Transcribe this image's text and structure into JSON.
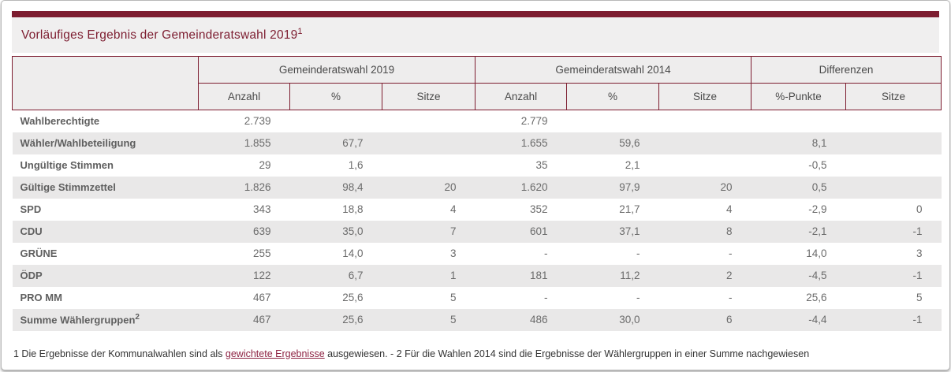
{
  "colors": {
    "accent": "#7d1d30",
    "link": "#8d2242",
    "title_strip_bg": "#f0efef",
    "header_cell_bg": "#eeeded",
    "row_stripe_bg": "#e9e8e8"
  },
  "title": {
    "text": "Vorläufiges Ergebnis der Gemeinderatswahl 2019",
    "sup": "1"
  },
  "table": {
    "groups": [
      {
        "label": "",
        "colspan": 1,
        "rowspan": 2
      },
      {
        "label": "Gemeinderatswahl 2019",
        "colspan": 3
      },
      {
        "label": "Gemeinderatswahl 2014",
        "colspan": 3
      },
      {
        "label": "Differenzen",
        "colspan": 2
      }
    ],
    "subheaders": [
      "Anzahl",
      "%",
      "Sitze",
      "Anzahl",
      "%",
      "Sitze",
      "%-Punkte",
      "Sitze"
    ],
    "rows": [
      {
        "label": "Wahlberechtigte",
        "values": [
          "2.739",
          "",
          "",
          "2.779",
          "",
          "",
          "",
          ""
        ]
      },
      {
        "label": "Wähler/Wahlbeteiligung",
        "values": [
          "1.855",
          "67,7",
          "",
          "1.655",
          "59,6",
          "",
          "8,1",
          ""
        ]
      },
      {
        "label": "Ungültige Stimmen",
        "values": [
          "29",
          "1,6",
          "",
          "35",
          "2,1",
          "",
          "-0,5",
          ""
        ]
      },
      {
        "label": "Gültige Stimmzettel",
        "values": [
          "1.826",
          "98,4",
          "20",
          "1.620",
          "97,9",
          "20",
          "0,5",
          ""
        ]
      },
      {
        "label": "SPD",
        "values": [
          "343",
          "18,8",
          "4",
          "352",
          "21,7",
          "4",
          "-2,9",
          "0"
        ]
      },
      {
        "label": "CDU",
        "values": [
          "639",
          "35,0",
          "7",
          "601",
          "37,1",
          "8",
          "-2,1",
          "-1"
        ]
      },
      {
        "label": "GRÜNE",
        "values": [
          "255",
          "14,0",
          "3",
          "-",
          "-",
          "-",
          "14,0",
          "3"
        ]
      },
      {
        "label": "ÖDP",
        "values": [
          "122",
          "6,7",
          "1",
          "181",
          "11,2",
          "2",
          "-4,5",
          "-1"
        ]
      },
      {
        "label": "PRO MM",
        "values": [
          "467",
          "25,6",
          "5",
          "-",
          "-",
          "-",
          "25,6",
          "5"
        ]
      },
      {
        "label": "Summe Wählergruppen",
        "sup": "2",
        "values": [
          "467",
          "25,6",
          "5",
          "486",
          "30,0",
          "6",
          "-4,4",
          "-1"
        ]
      }
    ]
  },
  "footnote": {
    "pre": "1 Die Ergebnisse der Kommunalwahlen sind als ",
    "link": "gewichtete Ergebnisse",
    "post": " ausgewiesen. - 2 Für die Wahlen 2014 sind die Ergebnisse der Wählergruppen in einer Summe nachgewiesen"
  }
}
